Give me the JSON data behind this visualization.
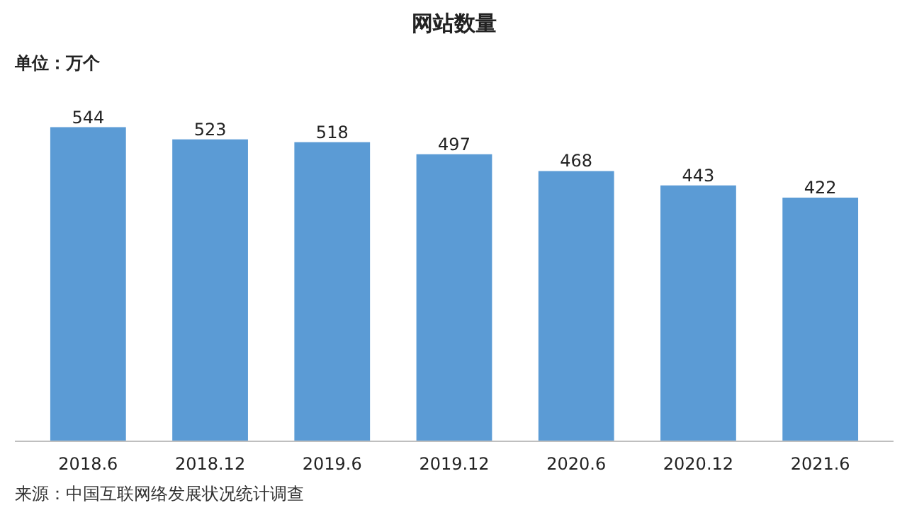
{
  "chart_data": {
    "type": "bar",
    "title": "网站数量",
    "ylabel": "单位：万个",
    "categories": [
      "2018.6",
      "2018.12",
      "2019.6",
      "2019.12",
      "2020.6",
      "2020.12",
      "2021.6"
    ],
    "values": [
      544,
      523,
      518,
      497,
      468,
      443,
      422
    ],
    "color": "#5b9bd5",
    "data_labels": true,
    "grid": false,
    "annotations": [
      "来源：中国互联网络发展状况统计调查"
    ]
  }
}
